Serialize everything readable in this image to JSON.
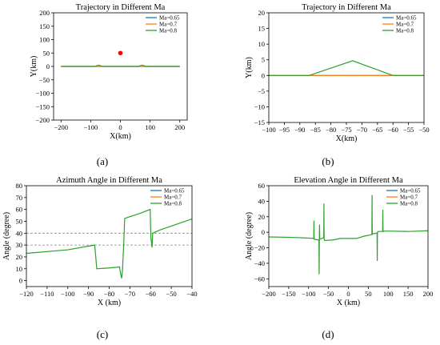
{
  "chart_data": [
    {
      "type": "line",
      "panel": "(a)",
      "title": "Trajectory in Different Ma",
      "xlabel": "X(km)",
      "ylabel": "Y(km)",
      "xlim": [
        -225,
        225
      ],
      "ylim": [
        -200,
        200
      ],
      "xticks": [
        -200,
        -100,
        0,
        100,
        200
      ],
      "yticks": [
        -200,
        -150,
        -100,
        -50,
        0,
        50,
        100,
        150,
        200
      ],
      "legend_position": "top-right",
      "grid": false,
      "marker": {
        "x": 0,
        "y": 50,
        "color": "#ff0000"
      },
      "series": [
        {
          "name": "Ma=0.65",
          "color": "#1f77b4",
          "x": [
            -200,
            200
          ],
          "y": [
            0,
            0
          ]
        },
        {
          "name": "Ma=0.7",
          "color": "#ff7f0e",
          "x": [
            -200,
            200
          ],
          "y": [
            0,
            0
          ]
        },
        {
          "name": "Ma=0.8",
          "color": "#2ca02c",
          "x": [
            -200,
            -87,
            -73,
            -60,
            60,
            73,
            87,
            200
          ],
          "y": [
            0,
            0,
            5,
            0,
            0,
            5,
            0,
            0
          ]
        }
      ]
    },
    {
      "type": "line",
      "panel": "(b)",
      "title": "Trajectory in Different Ma",
      "xlabel": "X(km)",
      "ylabel": "Y(km)",
      "xlim": [
        -100,
        -50
      ],
      "ylim": [
        -15,
        20
      ],
      "xticks": [
        -100,
        -95,
        -90,
        -85,
        -80,
        -75,
        -70,
        -65,
        -60,
        -55,
        -50
      ],
      "yticks": [
        -15,
        -10,
        -5,
        0,
        5,
        10,
        15,
        20
      ],
      "legend_position": "top-right",
      "grid": false,
      "series": [
        {
          "name": "Ma=0.65",
          "color": "#1f77b4",
          "x": [
            -100,
            -50
          ],
          "y": [
            0,
            0
          ]
        },
        {
          "name": "Ma=0.7",
          "color": "#ff7f0e",
          "x": [
            -100,
            -50
          ],
          "y": [
            0,
            0
          ]
        },
        {
          "name": "Ma=0.8",
          "color": "#2ca02c",
          "x": [
            -100,
            -87,
            -73,
            -60,
            -50
          ],
          "y": [
            0,
            0,
            4.7,
            0,
            0
          ]
        }
      ]
    },
    {
      "type": "line",
      "panel": "(c)",
      "title": "Azimuth Angle in Different Ma",
      "xlabel": "X (km)",
      "ylabel": "Angle (degree)",
      "xlim": [
        -120,
        -40
      ],
      "ylim": [
        -5,
        80
      ],
      "xticks": [
        -120,
        -110,
        -100,
        -90,
        -80,
        -70,
        -60,
        -50,
        -40
      ],
      "yticks": [
        0,
        10,
        20,
        30,
        40,
        50,
        60,
        70,
        80
      ],
      "legend_position": "top-right",
      "grid": false,
      "reference_lines": [
        30,
        40
      ],
      "series": [
        {
          "name": "Ma=0.65",
          "color": "#1f77b4",
          "x": [],
          "y": []
        },
        {
          "name": "Ma=0.7",
          "color": "#ff7f0e",
          "x": [],
          "y": []
        },
        {
          "name": "Ma=0.8",
          "color": "#2ca02c",
          "x": [
            -120,
            -100,
            -87,
            -86.5,
            -86,
            -80,
            -75,
            -74.5,
            -74,
            -73.6,
            -73,
            -72.5,
            -65,
            -60.2,
            -60,
            -59.8,
            -59.3,
            -59,
            -55,
            -50,
            -45,
            -40
          ],
          "y": [
            23,
            26,
            30,
            20,
            10,
            10.7,
            11.5,
            6,
            2,
            8,
            30,
            52.5,
            56.8,
            60,
            45,
            35,
            28,
            40,
            43,
            46,
            49,
            52
          ]
        }
      ]
    },
    {
      "type": "line",
      "panel": "(d)",
      "title": "Elevation Angle in Different Ma",
      "xlabel": "X (km)",
      "ylabel": "Angle (degree)",
      "xlim": [
        -200,
        200
      ],
      "ylim": [
        -70,
        60
      ],
      "xticks": [
        -200,
        -150,
        -100,
        -50,
        0,
        50,
        100,
        150,
        200
      ],
      "yticks": [
        -60,
        -40,
        -20,
        0,
        20,
        40,
        60
      ],
      "legend_position": "top-right",
      "grid": false,
      "series": [
        {
          "name": "Ma=0.65",
          "color": "#1f77b4",
          "x": [],
          "y": []
        },
        {
          "name": "Ma=0.7",
          "color": "#ff7f0e",
          "x": [],
          "y": []
        },
        {
          "name": "Ma=0.8",
          "color": "#2ca02c",
          "x": [
            -200,
            -150,
            -100,
            -87,
            -86.5,
            -86,
            -80,
            -74,
            -73.5,
            -73,
            -72.5,
            -72,
            -62,
            -61.5,
            -61,
            -60.5,
            -60,
            -40,
            -20,
            0,
            20,
            40,
            59,
            59.5,
            60,
            60.5,
            61,
            72,
            72.5,
            73,
            73.5,
            74,
            86,
            86.5,
            87,
            87.5,
            88,
            100,
            150,
            200
          ],
          "y": [
            -6,
            -6.5,
            -7.5,
            -8,
            15,
            -9,
            -9.5,
            -10,
            -54,
            -10,
            10,
            -9,
            -7,
            37,
            -8,
            -10,
            -10.5,
            -10,
            -8,
            -8,
            -8,
            -5,
            -3,
            48,
            -3,
            -2,
            -2,
            -1,
            -37,
            -1,
            0,
            1,
            1,
            29,
            1,
            1,
            1.5,
            1.5,
            1,
            2
          ]
        }
      ]
    }
  ]
}
